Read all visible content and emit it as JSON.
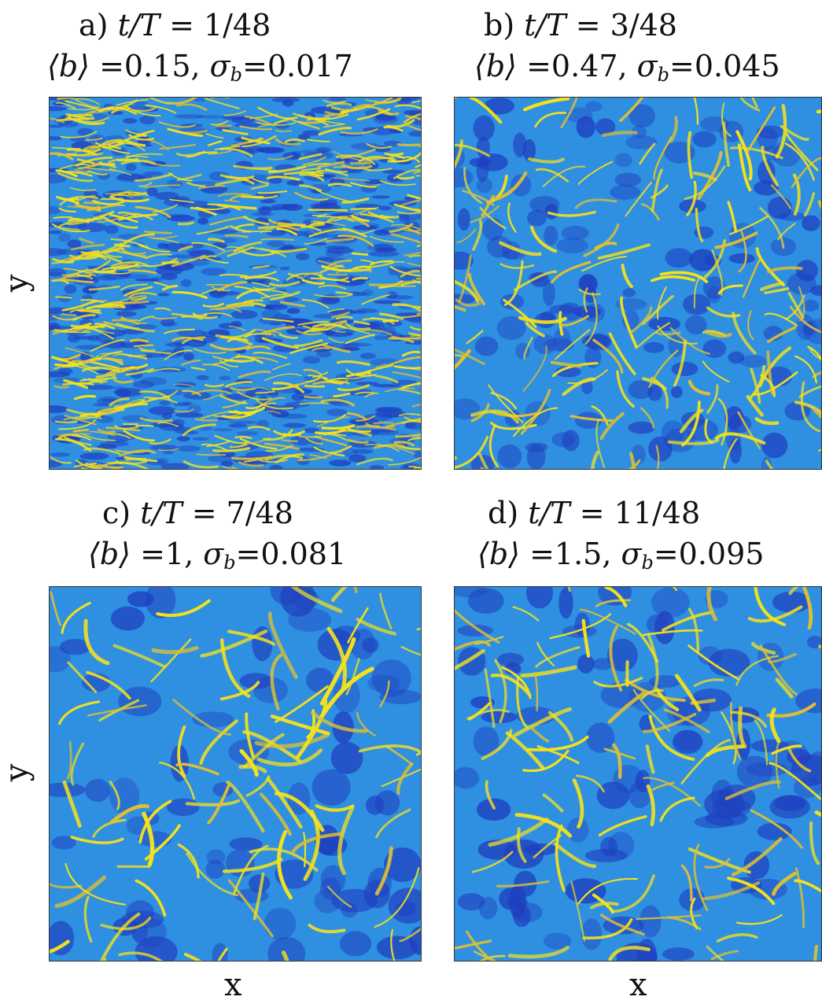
{
  "panels": [
    {
      "id": "a",
      "title_line1": {
        "prefix": "a) ",
        "math": "t/T",
        "eq": " = 1/48"
      },
      "title_line2": {
        "lhs": "⟨b⟩",
        "mean": " =0.15, ",
        "sigma": "σ",
        "sub": "b",
        "sd": "=0.017"
      },
      "pattern": "fine-streaky"
    },
    {
      "id": "b",
      "title_line1": {
        "prefix": "b) ",
        "math": "t/T",
        "eq": " = 3/48"
      },
      "title_line2": {
        "lhs": "⟨b⟩",
        "mean": " =0.47, ",
        "sigma": "σ",
        "sub": "b",
        "sd": "=0.045"
      },
      "pattern": "cellular-small"
    },
    {
      "id": "c",
      "title_line1": {
        "prefix": "c) ",
        "math": "t/T",
        "eq": " = 7/48"
      },
      "title_line2": {
        "lhs": "⟨b⟩",
        "mean": " =1, ",
        "sigma": "σ",
        "sub": "b",
        "sd": "=0.081"
      },
      "pattern": "cellular-medium"
    },
    {
      "id": "d",
      "title_line1": {
        "prefix": "d) ",
        "math": "t/T",
        "eq": " = 11/48"
      },
      "title_line2": {
        "lhs": "⟨b⟩",
        "mean": " =1.5, ",
        "sigma": "σ",
        "sub": "b",
        "sd": "=0.095"
      },
      "pattern": "cellular-large"
    }
  ],
  "axes": {
    "xlabel": "x",
    "ylabel": "y"
  },
  "colors": {
    "low": "#1f3fbf",
    "mid": "#2f8fe0",
    "high": "#f5e21a",
    "edge": "#e0c030"
  }
}
